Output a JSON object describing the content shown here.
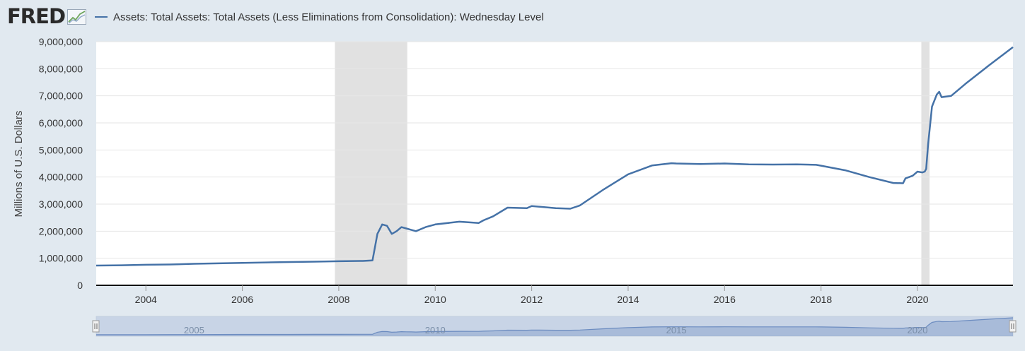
{
  "header": {
    "logo_text": "FRED",
    "series_title": "Assets: Total Assets: Total Assets (Less Eliminations from Consolidation): Wednesday Level"
  },
  "colors": {
    "series": "#4572a7",
    "recession": "#e1e1e1",
    "navigator_fill": "#b7c7df",
    "navigator_line": "#6c8cc0",
    "background": "#e1e9f0"
  },
  "chart_data": {
    "type": "line",
    "title": "Assets: Total Assets: Total Assets (Less Eliminations from Consolidation): Wednesday Level",
    "xlabel": "",
    "ylabel": "Millions of U.S. Dollars",
    "xlim": [
      2002.97,
      2021.98
    ],
    "ylim": [
      0,
      9000000
    ],
    "grid": true,
    "legend": "top-left",
    "x_ticks": [
      2004,
      2006,
      2008,
      2010,
      2012,
      2014,
      2016,
      2018,
      2020
    ],
    "x_tick_labels": [
      "2004",
      "2006",
      "2008",
      "2010",
      "2012",
      "2014",
      "2016",
      "2018",
      "2020"
    ],
    "y_ticks": [
      0,
      1000000,
      2000000,
      3000000,
      4000000,
      5000000,
      6000000,
      7000000,
      8000000,
      9000000
    ],
    "y_tick_labels": [
      "0",
      "1,000,000",
      "2,000,000",
      "3,000,000",
      "4,000,000",
      "5,000,000",
      "6,000,000",
      "7,000,000",
      "8,000,000",
      "9,000,000"
    ],
    "recessions": [
      [
        2007.92,
        2009.42
      ],
      [
        2020.08,
        2020.25
      ]
    ],
    "navigator_labels": [
      {
        "x": 2005,
        "text": "2005"
      },
      {
        "x": 2010,
        "text": "2010"
      },
      {
        "x": 2015,
        "text": "2015"
      },
      {
        "x": 2020,
        "text": "2020"
      }
    ],
    "series": [
      {
        "name": "Assets: Total Assets: Total Assets (Less Eliminations from Consolidation): Wednesday Level",
        "x": [
          2002.97,
          2003.5,
          2004.0,
          2004.5,
          2005.0,
          2005.5,
          2006.0,
          2006.5,
          2007.0,
          2007.5,
          2008.0,
          2008.5,
          2008.7,
          2008.75,
          2008.8,
          2008.9,
          2009.0,
          2009.1,
          2009.2,
          2009.3,
          2009.4,
          2009.5,
          2009.6,
          2009.8,
          2010.0,
          2010.5,
          2010.9,
          2011.0,
          2011.2,
          2011.5,
          2011.9,
          2012.0,
          2012.5,
          2012.8,
          2013.0,
          2013.5,
          2014.0,
          2014.5,
          2014.9,
          2015.0,
          2015.5,
          2016.0,
          2016.5,
          2017.0,
          2017.5,
          2017.9,
          2018.0,
          2018.5,
          2019.0,
          2019.5,
          2019.7,
          2019.75,
          2019.9,
          2020.0,
          2020.1,
          2020.15,
          2020.18,
          2020.22,
          2020.3,
          2020.4,
          2020.45,
          2020.5,
          2020.7,
          2021.0,
          2021.5,
          2021.98
        ],
        "values": [
          730000,
          740000,
          760000,
          770000,
          795000,
          810000,
          830000,
          845000,
          860000,
          875000,
          890000,
          900000,
          920000,
          1400000,
          1900000,
          2250000,
          2200000,
          1900000,
          2000000,
          2150000,
          2100000,
          2050000,
          2000000,
          2150000,
          2250000,
          2350000,
          2300000,
          2400000,
          2550000,
          2870000,
          2850000,
          2930000,
          2850000,
          2830000,
          2950000,
          3550000,
          4100000,
          4430000,
          4510000,
          4500000,
          4480000,
          4500000,
          4470000,
          4460000,
          4470000,
          4450000,
          4420000,
          4250000,
          4000000,
          3780000,
          3770000,
          3950000,
          4050000,
          4200000,
          4170000,
          4200000,
          4300000,
          5200000,
          6600000,
          7050000,
          7150000,
          6950000,
          7000000,
          7450000,
          8150000,
          8800000
        ]
      }
    ]
  }
}
